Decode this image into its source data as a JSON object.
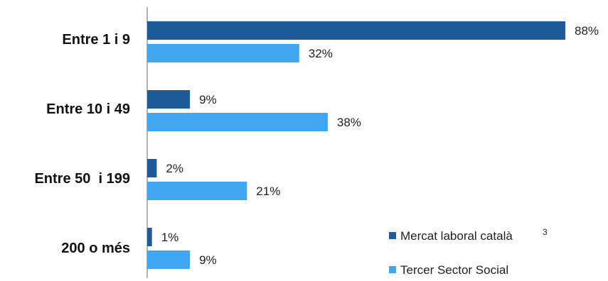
{
  "chart_data": {
    "type": "bar",
    "orientation": "horizontal",
    "categories": [
      "Entre 1 i 9",
      "Entre 10 i 49",
      "Entre 50  i 199",
      "200 o més"
    ],
    "series": [
      {
        "name": "Mercat laboral català",
        "name_superscript": "3",
        "color": "#1f5a99",
        "values": [
          88,
          9,
          2,
          1
        ],
        "labels": [
          "88%",
          "9%",
          "2%",
          "1%"
        ]
      },
      {
        "name": "Tercer Sector Social",
        "color": "#3fa6ef",
        "values": [
          32,
          38,
          21,
          9
        ],
        "labels": [
          "32%",
          "38%",
          "21%",
          "9%"
        ]
      }
    ],
    "xlim": [
      0,
      100
    ],
    "unit": "%",
    "grid": false,
    "legend_position": "bottom-right",
    "title": "",
    "xlabel": "",
    "ylabel": ""
  }
}
